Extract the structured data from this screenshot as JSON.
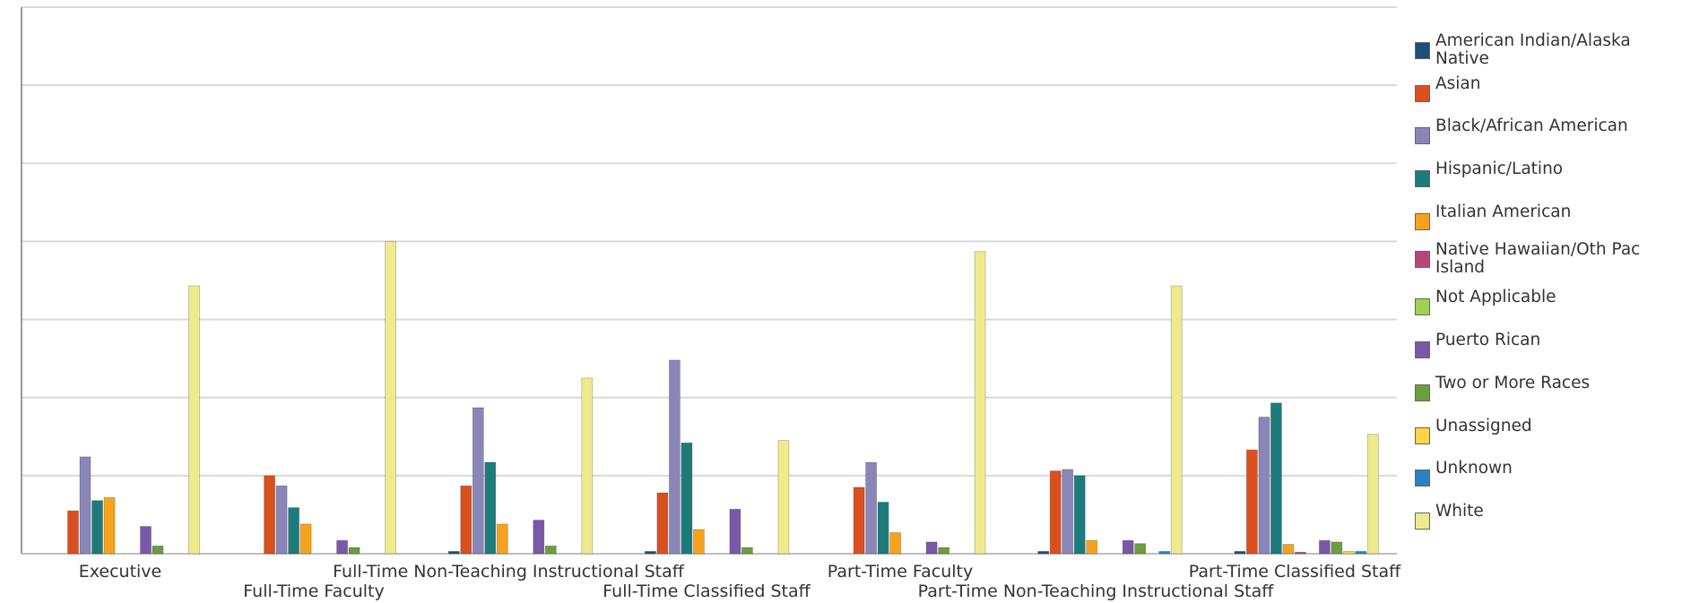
{
  "chart_data": {
    "type": "bar",
    "categories": [
      "Executive",
      "Full-Time Faculty",
      "Full-Time Non-Teaching Instructional Staff",
      "Full-Time Classified Staff",
      "Part-Time Faculty",
      "Part-Time Non-Teaching Instructional Staff",
      "Part-Time Classified Staff"
    ],
    "ylim": [
      0,
      7
    ],
    "grid": true,
    "legend_position": "right",
    "series": [
      {
        "name": "American Indian/Alaska Native",
        "color": "#1f4e79",
        "values": [
          0,
          0,
          0.03,
          0.03,
          0,
          0.03,
          0.03
        ]
      },
      {
        "name": "Asian",
        "color": "#d9501f",
        "values": [
          0.55,
          1.0,
          0.87,
          0.78,
          0.85,
          1.06,
          1.33
        ]
      },
      {
        "name": "Black/African American",
        "color": "#8a86b8",
        "values": [
          1.24,
          0.87,
          1.87,
          2.48,
          1.17,
          1.08,
          1.75
        ]
      },
      {
        "name": "Hispanic/Latino",
        "color": "#1e7b7b",
        "values": [
          0.68,
          0.59,
          1.17,
          1.42,
          0.66,
          1.0,
          1.93
        ]
      },
      {
        "name": "Italian American",
        "color": "#f7a21e",
        "values": [
          0.72,
          0.38,
          0.38,
          0.31,
          0.27,
          0.17,
          0.12
        ]
      },
      {
        "name": "Native Hawaiian/Oth Pac Island",
        "color": "#b5487a",
        "values": [
          0,
          0,
          0,
          0,
          0,
          0,
          0.02
        ]
      },
      {
        "name": "Not Applicable",
        "color": "#9fd152",
        "values": [
          0,
          0,
          0,
          0,
          0,
          0,
          0
        ]
      },
      {
        "name": "Puerto Rican",
        "color": "#7a58a8",
        "values": [
          0.35,
          0.17,
          0.43,
          0.57,
          0.15,
          0.17,
          0.17
        ]
      },
      {
        "name": "Two or More Races",
        "color": "#6b9e3c",
        "values": [
          0.1,
          0.08,
          0.1,
          0.08,
          0.08,
          0.13,
          0.15
        ]
      },
      {
        "name": "Unassigned",
        "color": "#ffd24a",
        "values": [
          0,
          0,
          0,
          0,
          0,
          0,
          0.03
        ]
      },
      {
        "name": "Unknown",
        "color": "#2b82c0",
        "values": [
          0,
          0,
          0,
          0,
          0,
          0.03,
          0.03
        ]
      },
      {
        "name": "White",
        "color": "#eeea8d",
        "values": [
          3.43,
          4.0,
          2.25,
          1.45,
          3.87,
          3.43,
          1.53
        ]
      }
    ]
  }
}
